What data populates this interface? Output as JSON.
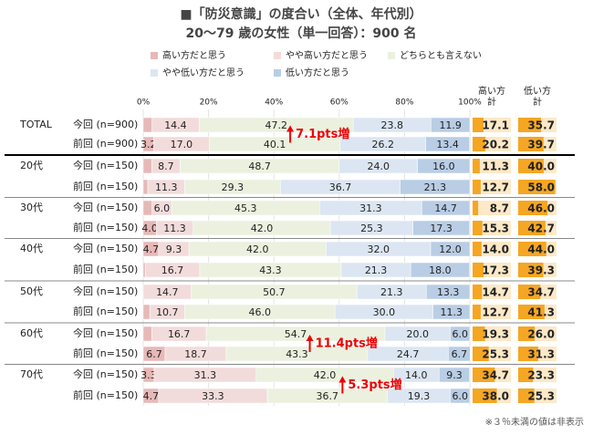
{
  "chart_data": {
    "type": "bar",
    "orientation": "horizontal",
    "stacked": "percent",
    "title": "■「防災意識」の度合い（全体、年代別）",
    "subtitle": "20～79 歳の女性（単一回答）：900 名",
    "groups": [
      "TOTAL",
      null,
      "20代",
      null,
      "30代",
      null,
      "40代",
      null,
      "50代",
      null,
      "60代",
      null,
      "70代",
      null
    ],
    "categories": [
      "今回 (n=900)",
      "前回 (n=900)",
      "今回 (n=150)",
      "前回 (n=150)",
      "今回 (n=150)",
      "前回 (n=150)",
      "今回 (n=150)",
      "前回 (n=150)",
      "今回 (n=150)",
      "前回 (n=150)",
      "今回 (n=150)",
      "前回 (n=150)",
      "今回 (n=150)",
      "前回 (n=150)"
    ],
    "xlim": [
      0,
      100
    ],
    "xticks": [
      {
        "value": 0,
        "label": "0%"
      },
      {
        "value": 20,
        "label": "20%"
      },
      {
        "value": 40,
        "label": "40%"
      },
      {
        "value": 60,
        "label": "60%"
      },
      {
        "value": 80,
        "label": "80%"
      },
      {
        "value": 100,
        "label": "100%"
      }
    ],
    "series": [
      {
        "name": "高い方だと思う",
        "color": "#e6b9b8",
        "values": [
          2.7,
          3.2,
          2.6,
          1.4,
          2.7,
          4.0,
          4.7,
          0.6,
          0,
          2.0,
          2.6,
          6.7,
          3.3,
          4.7
        ],
        "value_labels": [
          null,
          "3.2",
          null,
          null,
          null,
          "4.0",
          "4.7",
          null,
          null,
          null,
          null,
          "6.7",
          "3.3",
          "4.7"
        ]
      },
      {
        "name": "やや高い方だと思う",
        "color": "#f2dcdb",
        "values": [
          14.4,
          17.0,
          8.7,
          11.3,
          6.0,
          11.3,
          9.3,
          16.7,
          14.7,
          10.7,
          16.7,
          18.7,
          31.3,
          33.3
        ],
        "value_labels": [
          "14.4",
          "17.0",
          "8.7",
          "11.3",
          "6.0",
          "11.3",
          "9.3",
          "16.7",
          "14.7",
          "10.7",
          "16.7",
          "18.7",
          "31.3",
          "33.3"
        ]
      },
      {
        "name": "どちらとも言えない",
        "color": "#ebf1de",
        "values": [
          47.2,
          40.1,
          48.7,
          29.3,
          45.3,
          42.0,
          42.0,
          43.3,
          50.7,
          46.0,
          54.7,
          43.3,
          42.0,
          36.7
        ],
        "value_labels": [
          "47.2",
          "40.1",
          "48.7",
          "29.3",
          "45.3",
          "42.0",
          "42.0",
          "43.3",
          "50.7",
          "46.0",
          "54.7",
          "43.3",
          "42.0",
          "36.7"
        ]
      },
      {
        "name": "やや低い方だと思う",
        "color": "#dce6f2",
        "values": [
          23.8,
          26.2,
          24.0,
          36.7,
          31.3,
          25.3,
          32.0,
          21.3,
          21.3,
          30.0,
          20.0,
          24.7,
          14.0,
          19.3
        ],
        "value_labels": [
          "23.8",
          "26.2",
          "24.0",
          "36.7",
          "31.3",
          "25.3",
          "32.0",
          "21.3",
          "21.3",
          "30.0",
          "20.0",
          "24.7",
          "14.0",
          "19.3"
        ]
      },
      {
        "name": "低い方だと思う",
        "color": "#b9cde5",
        "values": [
          11.9,
          13.4,
          16.0,
          21.3,
          14.7,
          17.3,
          12.0,
          18.0,
          13.3,
          11.3,
          6.0,
          6.7,
          9.3,
          6.0
        ],
        "value_labels": [
          "11.9",
          "13.4",
          "16.0",
          "21.3",
          "14.7",
          "17.3",
          "12.0",
          "18.0",
          "13.3",
          "11.3",
          "6.0",
          "6.7",
          "9.3",
          "6.0"
        ]
      }
    ],
    "totals_xlim": [
      0,
      60
    ],
    "totals": [
      {
        "name": "高い方計",
        "color": "#f5a623",
        "values": [
          17.1,
          20.2,
          11.3,
          12.7,
          8.7,
          15.3,
          14.0,
          17.3,
          14.7,
          12.7,
          19.3,
          25.3,
          34.7,
          38.0
        ],
        "value_labels": [
          "17.1",
          "20.2",
          "11.3",
          "12.7",
          "8.7",
          "15.3",
          "14.0",
          "17.3",
          "14.7",
          "12.7",
          "19.3",
          "25.3",
          "34.7",
          "38.0"
        ]
      },
      {
        "name": "低い方計",
        "color": "#f5a623",
        "values": [
          35.7,
          39.7,
          40.0,
          58.0,
          46.0,
          42.7,
          44.0,
          39.3,
          34.7,
          41.3,
          26.0,
          31.3,
          23.3,
          25.3
        ],
        "value_labels": [
          "35.7",
          "39.7",
          "40.0",
          "58.0",
          "46.0",
          "42.7",
          "44.0",
          "39.3",
          "34.7",
          "41.3",
          "26.0",
          "31.3",
          "23.3",
          "25.3"
        ]
      }
    ],
    "annotations": [
      {
        "text": "7.1pts増",
        "row": 0,
        "x": 45
      },
      {
        "text": "11.4pts増",
        "row": 10,
        "x": 51
      },
      {
        "text": "5.3pts増",
        "row": 12,
        "x": 61
      }
    ],
    "note": "※３％未満の値は非表示"
  }
}
